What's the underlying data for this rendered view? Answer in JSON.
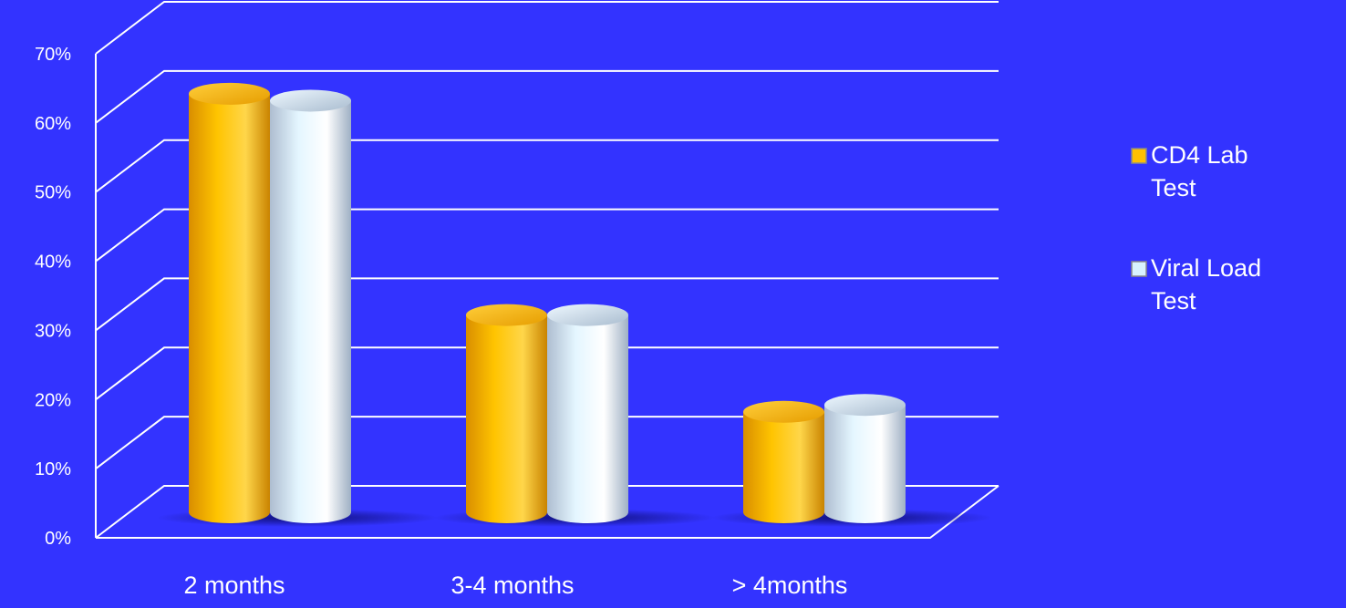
{
  "chart_data": {
    "type": "bar",
    "categories": [
      "2 months",
      "3-4 months",
      "> 4months"
    ],
    "series": [
      {
        "name": "CD4 Lab Test",
        "values": [
          60,
          28,
          14
        ]
      },
      {
        "name": "Viral Load Test",
        "values": [
          59,
          28,
          15
        ]
      }
    ],
    "y_ticks": [
      "0%",
      "10%",
      "20%",
      "30%",
      "40%",
      "50%",
      "60%",
      "70%"
    ],
    "ylim": [
      0,
      70
    ],
    "grid": true,
    "legend_position": "right",
    "colors": {
      "background": "#3333ff",
      "series_1": "#ffc000",
      "series_2": "#d8f2ff",
      "grid": "#ffffff"
    }
  }
}
